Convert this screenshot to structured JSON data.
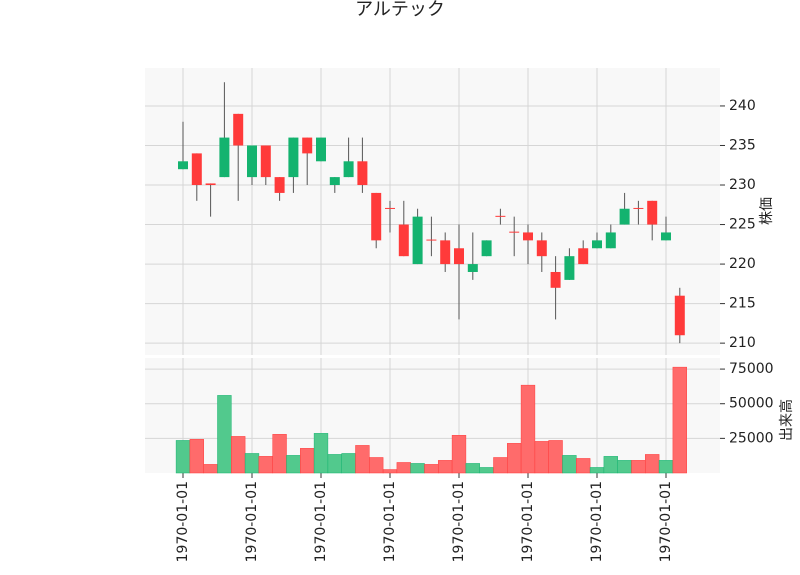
{
  "chart_data": {
    "type": "candlestick",
    "title": "アルテック",
    "categories": [
      "1970-01-01",
      null,
      null,
      null,
      null,
      "1970-01-01",
      null,
      null,
      null,
      null,
      "1970-01-01",
      null,
      null,
      null,
      null,
      "1970-01-01",
      null,
      null,
      null,
      null,
      "1970-01-01",
      null,
      null,
      null,
      null,
      "1970-01-01",
      null,
      null,
      null,
      null,
      "1970-01-01",
      null,
      null,
      null,
      null,
      "1970-01-01",
      null
    ],
    "open": [
      232,
      234,
      230.2,
      231,
      239,
      231,
      235,
      231,
      231,
      236,
      233,
      230,
      231,
      233,
      229,
      227.1,
      225,
      220,
      223.1,
      223,
      222,
      219,
      221,
      226.1,
      224.1,
      224,
      223,
      219,
      218,
      222,
      222,
      222,
      225,
      227.1,
      228,
      223,
      216
    ],
    "high": [
      238,
      234,
      230.2,
      243,
      239,
      235,
      235,
      231,
      236,
      236,
      236,
      231,
      236,
      236,
      229,
      228,
      228,
      227,
      226,
      224,
      225,
      224,
      223,
      227,
      226,
      225,
      224,
      221,
      222,
      223,
      224,
      225,
      229,
      228,
      228,
      226,
      217
    ],
    "low": [
      232,
      228,
      226,
      231,
      228,
      230,
      230,
      228,
      229,
      230,
      233,
      229,
      231,
      229,
      222,
      224,
      221,
      220,
      221,
      219,
      213,
      218,
      221,
      225,
      221,
      220,
      219,
      213,
      218,
      220,
      222,
      222,
      225,
      225,
      223,
      223,
      210
    ],
    "close": [
      233,
      230,
      230,
      236,
      235,
      235,
      231,
      229,
      236,
      234,
      236,
      231,
      233,
      230,
      223,
      227,
      221,
      226,
      223,
      220,
      220,
      220,
      223,
      226,
      224,
      223,
      221,
      217,
      221,
      220,
      223,
      224,
      227,
      227,
      225,
      224,
      211
    ],
    "volume": [
      23500,
      24300,
      6200,
      56000,
      26400,
      14100,
      12000,
      27900,
      12700,
      17800,
      28600,
      13400,
      14100,
      19900,
      11200,
      2500,
      7600,
      6900,
      6200,
      9100,
      27200,
      6900,
      4000,
      11200,
      21400,
      63400,
      22800,
      23500,
      12700,
      10500,
      4000,
      12000,
      9100,
      9100,
      13400,
      9100,
      76400
    ],
    "up_color": "#14b36f",
    "down_color": "#ff3a3a",
    "volume_up_color": "#52c98d",
    "volume_down_color": "#ff6b6b",
    "ylabel": "株価",
    "ylim": [
      208.5,
      244.8
    ],
    "yticks": [
      210,
      215,
      220,
      225,
      230,
      235,
      240
    ],
    "volume_label": "出来高",
    "volume_ylim": [
      0,
      83000
    ],
    "volume_yticks": [
      25000,
      50000,
      75000
    ],
    "grid": true
  }
}
